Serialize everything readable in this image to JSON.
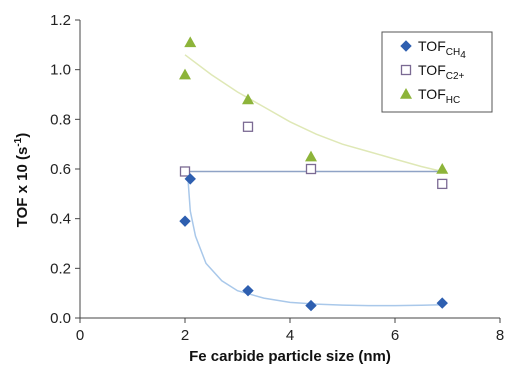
{
  "chart_data": {
    "type": "scatter",
    "xlabel": "Fe carbide particle size (nm)",
    "ylabel": "TOF x 10 (s",
    "ylabel_sup": "-1",
    "ylabel_close": ")",
    "xlim": [
      0,
      8
    ],
    "ylim": [
      0,
      1.2
    ],
    "x_ticks": [
      "0",
      "2",
      "4",
      "6",
      "8"
    ],
    "y_ticks": [
      "0.0",
      "0.2",
      "0.4",
      "0.6",
      "0.8",
      "1.0",
      "1.2"
    ],
    "grid": false,
    "legend_position": "top-right",
    "series": [
      {
        "name": "TOF",
        "name_sub": "CH4",
        "name_sub_main": "CH",
        "name_sub_num": "4",
        "marker": "diamond",
        "color": "#2e5fb0",
        "points": [
          [
            2.0,
            0.39
          ],
          [
            2.1,
            0.56
          ],
          [
            3.2,
            0.11
          ],
          [
            4.4,
            0.05
          ],
          [
            6.9,
            0.06
          ]
        ],
        "trend_color": "#a9c8ea"
      },
      {
        "name": "TOF",
        "name_sub": "C2+",
        "name_sub_main": "C",
        "name_sub_num": "2+",
        "marker": "square-open",
        "color": "#7b6a93",
        "points": [
          [
            2.0,
            0.59
          ],
          [
            3.2,
            0.77
          ],
          [
            4.4,
            0.6
          ],
          [
            6.9,
            0.54
          ]
        ],
        "trend_color": "#8fa3c6"
      },
      {
        "name": "TOF",
        "name_sub": "HC",
        "name_sub_main": "HC",
        "name_sub_num": "",
        "marker": "triangle",
        "color": "#8db43a",
        "points": [
          [
            2.0,
            0.98
          ],
          [
            2.1,
            1.11
          ],
          [
            3.2,
            0.88
          ],
          [
            4.4,
            0.65
          ],
          [
            6.9,
            0.6
          ]
        ],
        "trend_color": "#dfe8b6"
      }
    ],
    "trendlines": {
      "ch4": [
        [
          2.05,
          0.58
        ],
        [
          2.1,
          0.43
        ],
        [
          2.2,
          0.33
        ],
        [
          2.4,
          0.22
        ],
        [
          2.7,
          0.15
        ],
        [
          3.0,
          0.11
        ],
        [
          3.5,
          0.08
        ],
        [
          4.0,
          0.063
        ],
        [
          4.5,
          0.056
        ],
        [
          5.0,
          0.052
        ],
        [
          5.5,
          0.05
        ],
        [
          6.0,
          0.05
        ],
        [
          6.5,
          0.051
        ],
        [
          6.9,
          0.053
        ]
      ],
      "c2": [
        [
          2.0,
          0.59
        ],
        [
          6.9,
          0.59
        ]
      ],
      "hc": [
        [
          2.0,
          1.06
        ],
        [
          2.5,
          0.98
        ],
        [
          3.0,
          0.91
        ],
        [
          3.5,
          0.85
        ],
        [
          4.0,
          0.79
        ],
        [
          4.5,
          0.74
        ],
        [
          5.0,
          0.7
        ],
        [
          5.5,
          0.67
        ],
        [
          6.0,
          0.64
        ],
        [
          6.5,
          0.61
        ],
        [
          6.9,
          0.59
        ]
      ]
    }
  }
}
